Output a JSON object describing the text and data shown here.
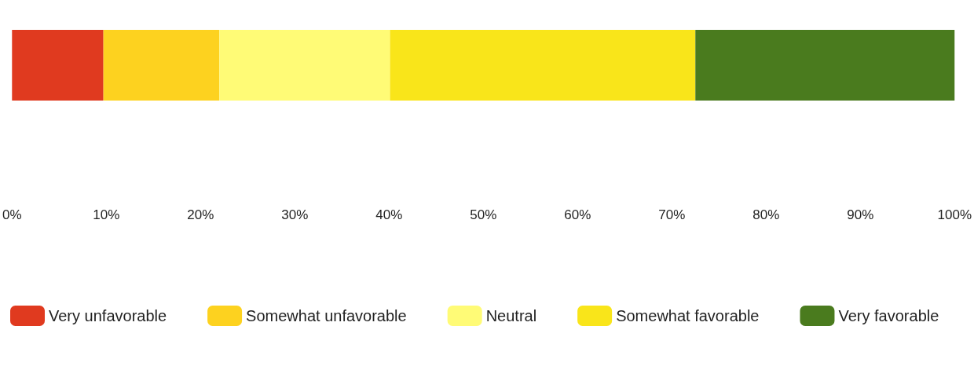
{
  "chart_data": {
    "type": "bar",
    "orientation": "horizontal",
    "stacked": true,
    "categories": [
      null
    ],
    "series": [
      {
        "name": "Very unfavorable",
        "color": "#e03a1f",
        "values": [
          9.7
        ]
      },
      {
        "name": "Somewhat unfavorable",
        "color": "#fdd21f",
        "values": [
          12.3
        ]
      },
      {
        "name": "Neutral",
        "color": "#fffb76",
        "values": [
          18.1
        ]
      },
      {
        "name": "Somewhat favorable",
        "color": "#f9e51a",
        "values": [
          32.4
        ]
      },
      {
        "name": "Very favorable",
        "color": "#4a7b1e",
        "values": [
          27.5
        ]
      }
    ],
    "xlim": [
      0,
      100
    ],
    "xticks": [
      {
        "value": 0,
        "label": "0%"
      },
      {
        "value": 10,
        "label": "10%"
      },
      {
        "value": 20,
        "label": "20%"
      },
      {
        "value": 30,
        "label": "30%"
      },
      {
        "value": 40,
        "label": "40%"
      },
      {
        "value": 50,
        "label": "50%"
      },
      {
        "value": 60,
        "label": "60%"
      },
      {
        "value": 70,
        "label": "70%"
      },
      {
        "value": 80,
        "label": "80%"
      },
      {
        "value": 90,
        "label": "90%"
      },
      {
        "value": 100,
        "label": "100%"
      }
    ],
    "grid": false,
    "legend": "bottom"
  }
}
